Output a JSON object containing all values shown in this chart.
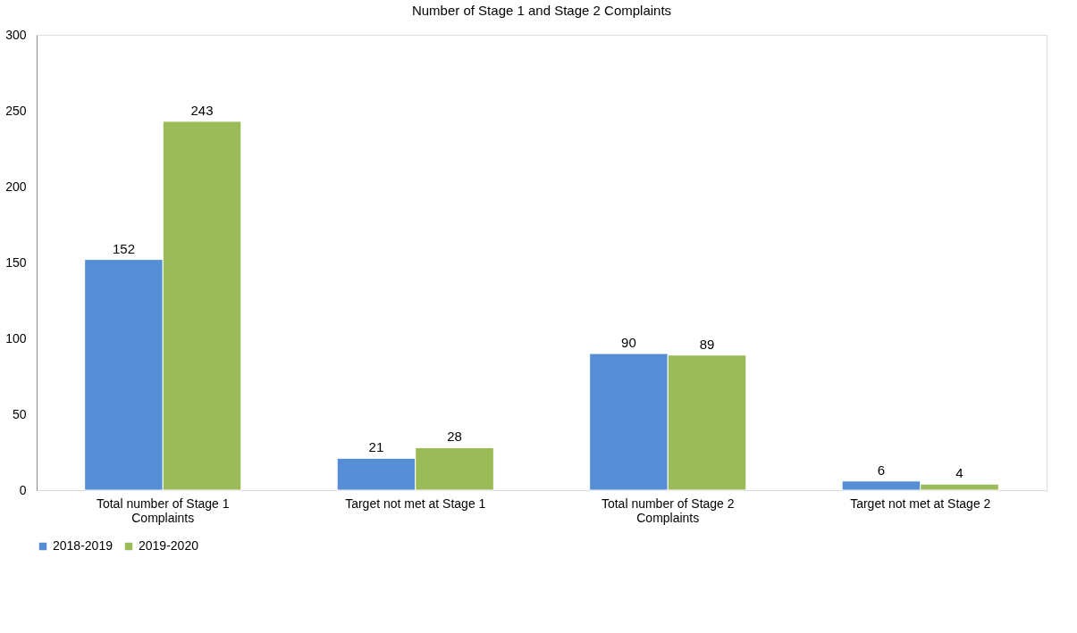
{
  "chart_data": {
    "type": "bar",
    "title": "Number of Stage 1 and Stage 2 Complaints",
    "categories": [
      "Total number of Stage 1 Complaints",
      "Target not met at Stage 1",
      "Total number of Stage 2 Complaints",
      "Target not met at Stage 2"
    ],
    "series": [
      {
        "name": "2018-2019",
        "color": "#558ed5",
        "values": [
          152,
          21,
          90,
          6
        ]
      },
      {
        "name": "2019-2020",
        "color": "#9bbb59",
        "values": [
          243,
          28,
          89,
          4
        ]
      }
    ],
    "ylim": [
      0,
      300
    ],
    "yticks": [
      0,
      50,
      100,
      150,
      200,
      250,
      300
    ],
    "grid": false,
    "legend": "bottom",
    "data_labels": true
  }
}
